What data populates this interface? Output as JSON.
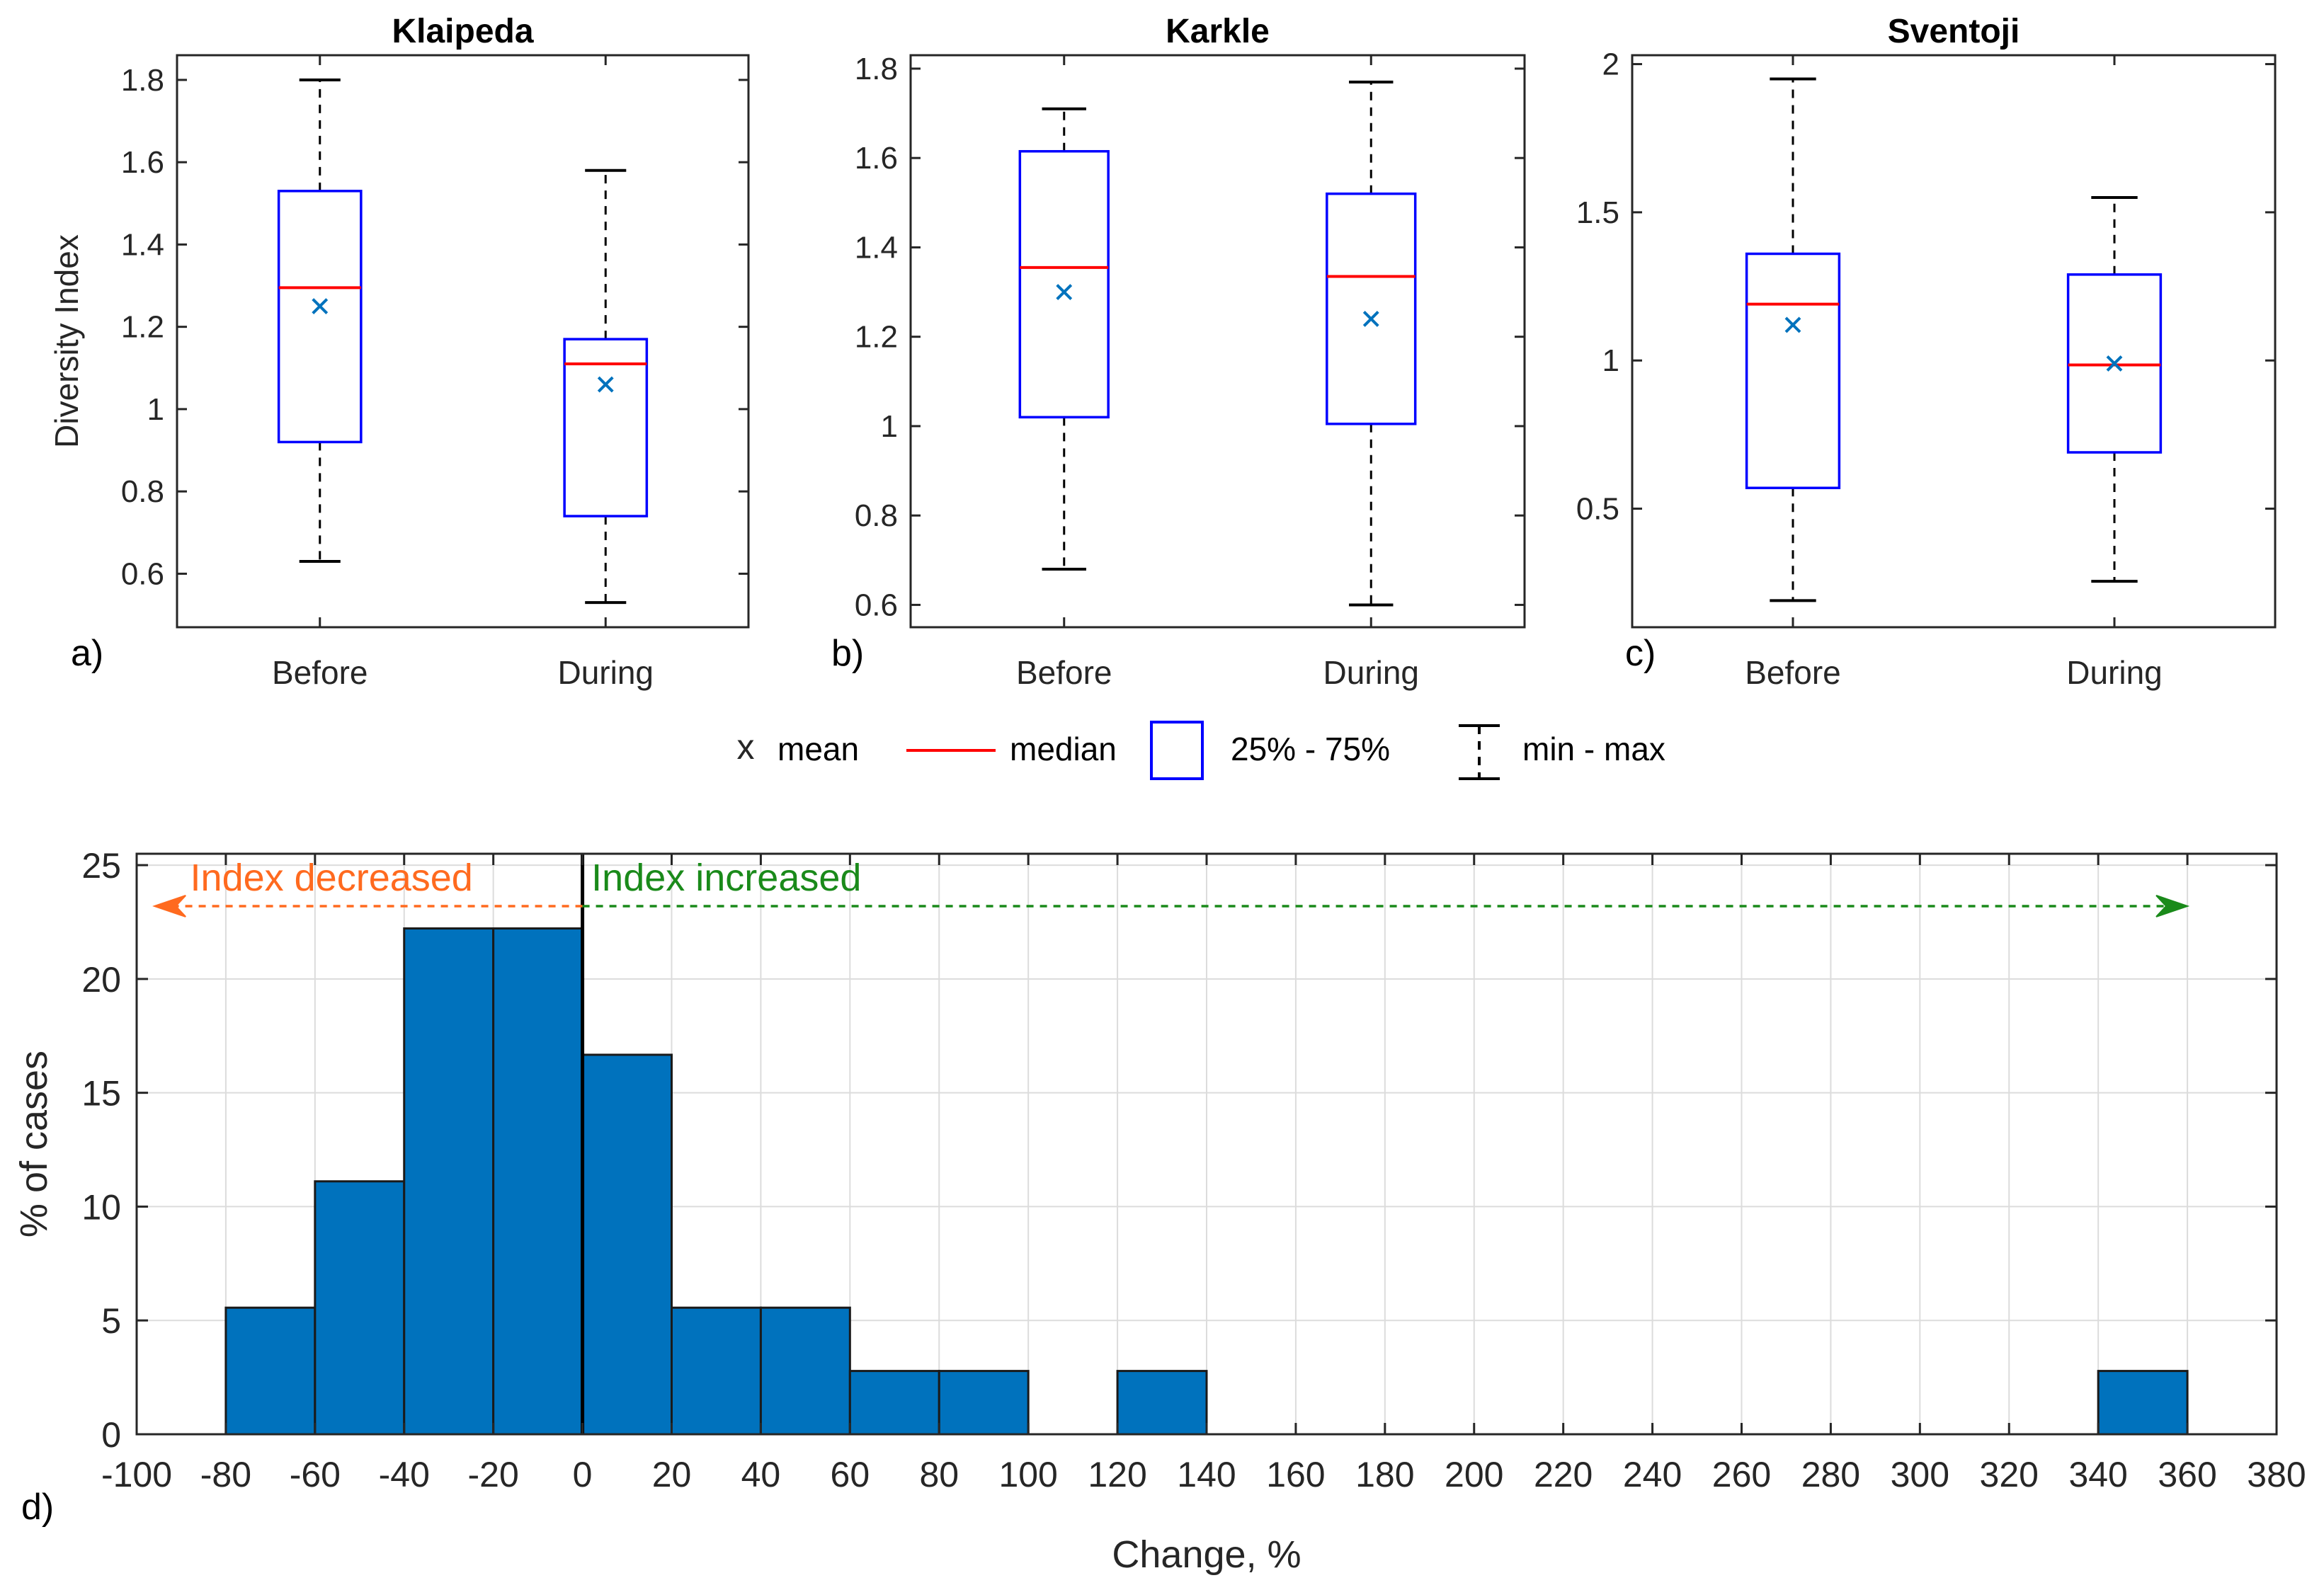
{
  "chart_data": [
    {
      "type": "box",
      "panel_label": "a)",
      "title": "Klaipeda",
      "ylabel": "Diversity Index",
      "ylim": [
        0.47,
        1.86
      ],
      "yticks": [
        "0.6",
        "0.8",
        "1",
        "1.2",
        "1.4",
        "1.6",
        "1.8"
      ],
      "categories": [
        "Before",
        "During"
      ],
      "boxes": [
        {
          "min": 0.63,
          "q1": 0.92,
          "median": 1.295,
          "q3": 1.53,
          "max": 1.8,
          "mean": 1.25
        },
        {
          "min": 0.53,
          "q1": 0.74,
          "median": 1.11,
          "q3": 1.17,
          "max": 1.58,
          "mean": 1.06
        }
      ]
    },
    {
      "type": "box",
      "panel_label": "b)",
      "title": "Karkle",
      "ylabel": "",
      "ylim": [
        0.55,
        1.83
      ],
      "yticks": [
        "0.6",
        "0.8",
        "1",
        "1.2",
        "1.4",
        "1.6",
        "1.8"
      ],
      "categories": [
        "Before",
        "During"
      ],
      "boxes": [
        {
          "min": 0.68,
          "q1": 1.02,
          "median": 1.355,
          "q3": 1.615,
          "max": 1.71,
          "mean": 1.3
        },
        {
          "min": 0.6,
          "q1": 1.005,
          "median": 1.335,
          "q3": 1.52,
          "max": 1.77,
          "mean": 1.24
        }
      ]
    },
    {
      "type": "box",
      "panel_label": "c)",
      "title": "Sventoji",
      "ylabel": "",
      "ylim": [
        0.1,
        2.03
      ],
      "yticks": [
        "0.5",
        "1",
        "1.5",
        "2"
      ],
      "categories": [
        "Before",
        "During"
      ],
      "boxes": [
        {
          "min": 0.19,
          "q1": 0.57,
          "median": 1.19,
          "q3": 1.36,
          "max": 1.95,
          "mean": 1.12
        },
        {
          "min": 0.255,
          "q1": 0.69,
          "median": 0.985,
          "q3": 1.29,
          "max": 1.55,
          "mean": 0.99
        }
      ]
    },
    {
      "type": "bar",
      "subtype": "histogram",
      "panel_label": "d)",
      "xlabel": "Change, %",
      "ylabel": "% of cases",
      "xlim": [
        -100,
        380
      ],
      "ylim": [
        0,
        25.5
      ],
      "xticks": [
        "-100",
        "-80",
        "-60",
        "-40",
        "-20",
        "0",
        "20",
        "40",
        "60",
        "80",
        "100",
        "120",
        "140",
        "160",
        "180",
        "200",
        "220",
        "240",
        "260",
        "280",
        "300",
        "320",
        "340",
        "360",
        "380"
      ],
      "yticks": [
        "0",
        "5",
        "10",
        "15",
        "20",
        "25"
      ],
      "bins": [
        {
          "from": -80,
          "to": -60,
          "value": 5.56
        },
        {
          "from": -60,
          "to": -40,
          "value": 11.11
        },
        {
          "from": -40,
          "to": -20,
          "value": 22.22
        },
        {
          "from": -20,
          "to": 0,
          "value": 22.22
        },
        {
          "from": 0,
          "to": 20,
          "value": 16.67
        },
        {
          "from": 20,
          "to": 40,
          "value": 5.56
        },
        {
          "from": 40,
          "to": 60,
          "value": 5.56
        },
        {
          "from": 60,
          "to": 80,
          "value": 2.78
        },
        {
          "from": 80,
          "to": 100,
          "value": 2.78
        },
        {
          "from": 120,
          "to": 140,
          "value": 2.78
        },
        {
          "from": 340,
          "to": 360,
          "value": 2.78
        }
      ],
      "annotations": [
        {
          "text": "Index decreased",
          "from": 0,
          "to": -96,
          "y": 23.2,
          "color": "#ff6a1f"
        },
        {
          "text": "Index increased",
          "from": 0,
          "to": 360,
          "y": 23.2,
          "color": "#1a8a1a"
        }
      ]
    }
  ],
  "legend": {
    "mean": "mean",
    "median": "median",
    "box": "25% - 75%",
    "whisker": "min - max"
  },
  "colors": {
    "box": "#0000ff",
    "median": "#ff0000",
    "mean": "#0072bd",
    "bar": "#0072bd",
    "legend_mean": "#007070"
  }
}
